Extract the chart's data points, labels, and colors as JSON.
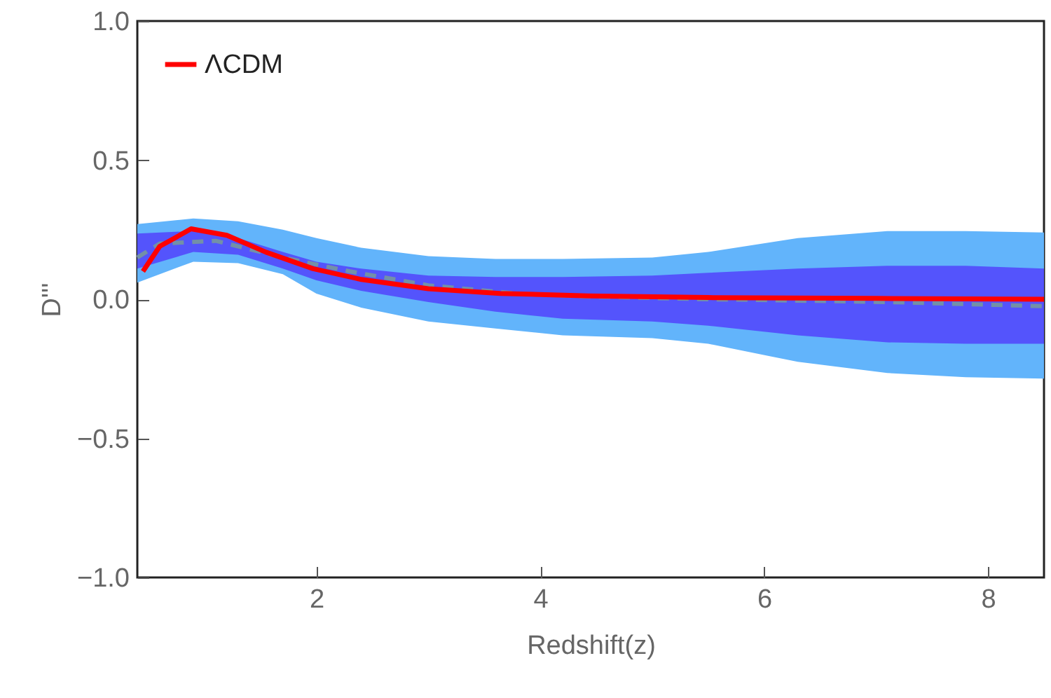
{
  "chart_data": {
    "type": "line",
    "xlabel": "Redshift(z)",
    "ylabel": "D'''",
    "xlim": [
      0.4,
      8.5
    ],
    "ylim": [
      -1.0,
      1.0
    ],
    "xticks": [
      {
        "value": 2,
        "label": "2"
      },
      {
        "value": 4,
        "label": "4"
      },
      {
        "value": 6,
        "label": "6"
      },
      {
        "value": 8,
        "label": "8"
      }
    ],
    "yticks": [
      {
        "value": -1.0,
        "label": "−1.0"
      },
      {
        "value": -0.5,
        "label": "−0.5"
      },
      {
        "value": 0,
        "label": "0.0"
      },
      {
        "value": 0.5,
        "label": "0.5"
      },
      {
        "value": 1.0,
        "label": "1.0"
      }
    ],
    "grid": false,
    "legend": "top left",
    "series": [
      {
        "type": "area",
        "color": "#62b4fb",
        "x": [
          0.4,
          0.9,
          1.3,
          1.7,
          2.0,
          2.4,
          3.0,
          3.6,
          4.2,
          5.0,
          5.5,
          6.3,
          7.1,
          7.8,
          8.5
        ],
        "values": [
          null,
          null,
          null,
          null,
          null,
          null,
          null,
          null,
          null,
          null,
          null,
          null,
          null,
          null,
          null
        ],
        "lower": [
          0.06,
          0.135,
          0.13,
          0.09,
          0.02,
          -0.03,
          -0.08,
          -0.105,
          -0.13,
          -0.14,
          -0.16,
          -0.225,
          -0.265,
          -0.28,
          -0.285
        ],
        "upper": [
          0.27,
          0.29,
          0.28,
          0.25,
          0.22,
          0.185,
          0.155,
          0.145,
          0.145,
          0.15,
          0.17,
          0.22,
          0.245,
          0.245,
          0.24
        ]
      },
      {
        "type": "area",
        "color": "#5454fc",
        "x": [
          0.4,
          0.9,
          1.3,
          1.7,
          2.0,
          2.4,
          3.0,
          3.6,
          4.2,
          5.0,
          5.5,
          6.3,
          7.1,
          7.8,
          8.5
        ],
        "values": [
          null,
          null,
          null,
          null,
          null,
          null,
          null,
          null,
          null,
          null,
          null,
          null,
          null,
          null,
          null
        ],
        "lower": [
          0.11,
          0.17,
          0.16,
          0.11,
          0.068,
          0.03,
          -0.01,
          -0.045,
          -0.07,
          -0.08,
          -0.095,
          -0.13,
          -0.155,
          -0.16,
          -0.16
        ],
        "upper": [
          0.236,
          0.245,
          0.22,
          0.17,
          0.135,
          0.11,
          0.085,
          0.08,
          0.08,
          0.085,
          0.095,
          0.11,
          0.12,
          0.12,
          0.11
        ]
      },
      {
        "type": "line",
        "color": "#7390a8",
        "line_style": "dashed",
        "x": [
          0.4,
          0.6,
          1.1,
          1.7,
          2.3,
          3.0,
          3.8,
          4.4,
          5.5,
          7.1,
          8.5
        ],
        "values": [
          0.15,
          0.2,
          0.21,
          0.15,
          0.1,
          0.05,
          0.02,
          0.01,
          0.0,
          -0.01,
          -0.025
        ]
      },
      {
        "type": "line",
        "name": "ΛCDM",
        "color": "#ff0000",
        "line_style": "solid",
        "x": [
          0.45,
          0.6,
          0.88,
          1.2,
          1.55,
          1.97,
          2.39,
          3.0,
          3.64,
          4.43,
          5.5,
          7.0,
          8.5
        ],
        "values": [
          0.1,
          0.19,
          0.253,
          0.23,
          0.169,
          0.11,
          0.072,
          0.038,
          0.021,
          0.012,
          0.006,
          0.003,
          0.0
        ]
      }
    ]
  }
}
